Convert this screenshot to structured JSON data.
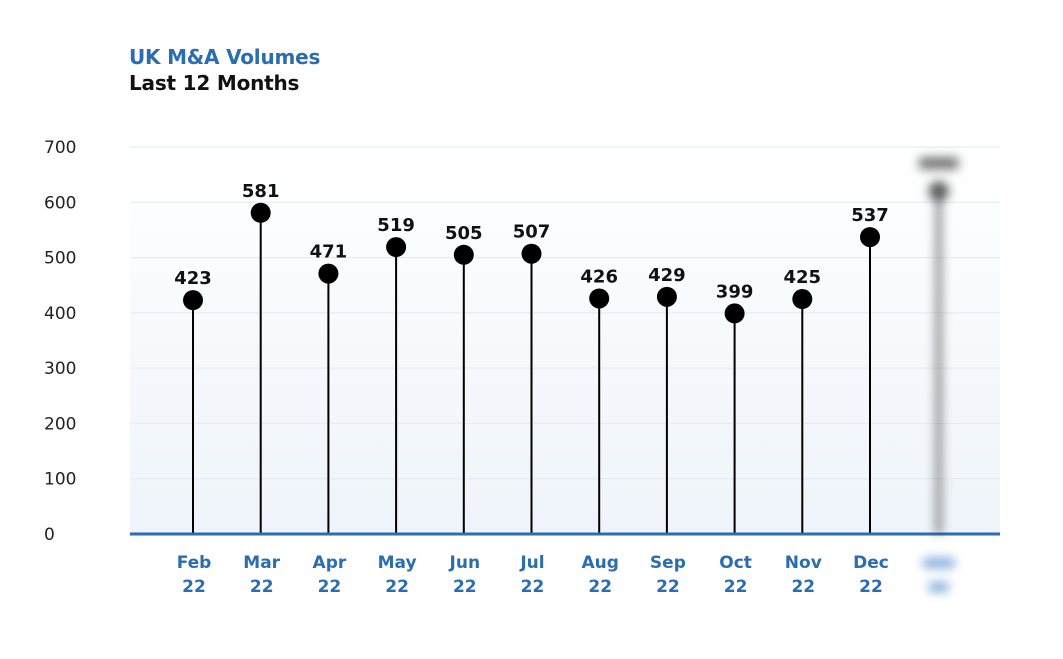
{
  "header": {
    "title": "UK M&A Volumes",
    "subtitle": "Last 12 Months"
  },
  "colors": {
    "title": "#2a6db0",
    "axis": "#2a6db0",
    "marker": "#000000",
    "plot_bg": "#f4f8fc"
  },
  "chart_data": {
    "type": "scatter",
    "style": "lollipop",
    "title": "UK M&A Volumes",
    "subtitle": "Last 12 Months",
    "categories": [
      [
        "Feb",
        "22"
      ],
      [
        "Mar",
        "22"
      ],
      [
        "Apr",
        "22"
      ],
      [
        "May",
        "22"
      ],
      [
        "Jun",
        "22"
      ],
      [
        "Jul",
        "22"
      ],
      [
        "Aug",
        "22"
      ],
      [
        "Sep",
        "22"
      ],
      [
        "Oct",
        "22"
      ],
      [
        "Nov",
        "22"
      ],
      [
        "Dec",
        "22"
      ]
    ],
    "values": [
      423,
      581,
      471,
      519,
      505,
      507,
      426,
      429,
      399,
      425,
      537
    ],
    "obscured_last_point": {
      "value": 620,
      "note_shown": false
    },
    "ylim": [
      0,
      700
    ],
    "yticks": [
      0,
      100,
      200,
      300,
      400,
      500,
      600,
      700
    ],
    "grid": true,
    "legend": "none"
  }
}
